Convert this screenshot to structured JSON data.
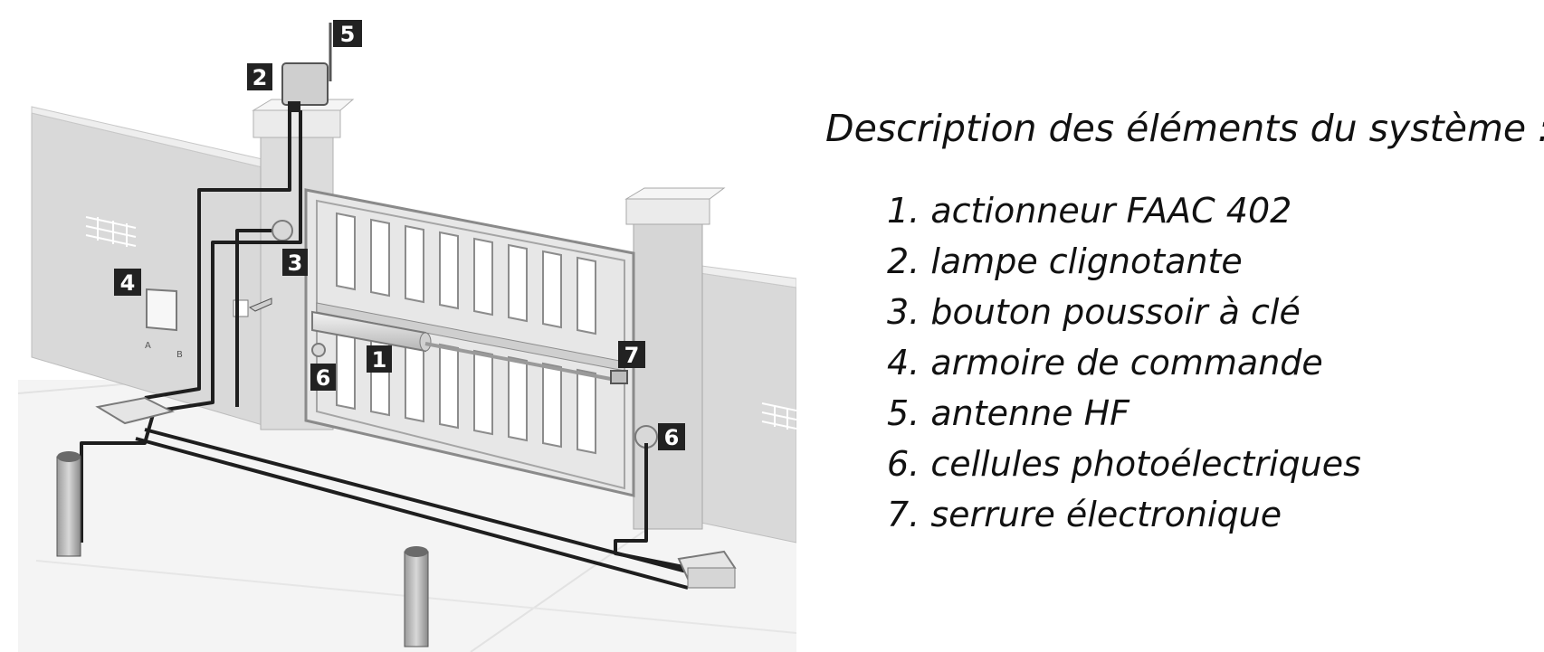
{
  "title": "Description des éléments du système :",
  "components": [
    {
      "label": "1. actionneur FAAC 402"
    },
    {
      "label": "2. lampe clignotante"
    },
    {
      "label": "3. bouton poussoir à clé"
    },
    {
      "label": "4. armoire de commande"
    },
    {
      "label": "5. antenne HF"
    },
    {
      "label": "6. cellules photoélectriques"
    },
    {
      "label": "7. serrure électronique"
    }
  ],
  "callouts": {
    "c1": "1",
    "c2": "2",
    "c3": "3",
    "c4": "4",
    "c5": "5",
    "c6a": "6",
    "c6b": "6",
    "c7": "7"
  },
  "cabinet_letters": {
    "a": "A",
    "b": "B"
  },
  "colors": {
    "wall": "#d9d9d9",
    "wall_shade": "#c4c4c4",
    "gate": "#e6e6e6",
    "cable": "#1e1e1e",
    "callout_bg": "#222222",
    "text": "#111111"
  }
}
